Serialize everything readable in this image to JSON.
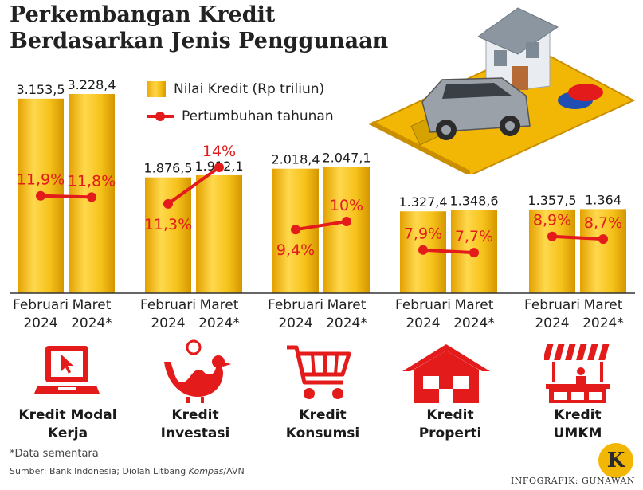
{
  "title": "Perkembangan Kredit Berdasarkan Jenis Penggunaan",
  "legend": {
    "bar_label": "Nilai Kredit (Rp triliun)",
    "line_label": "Pertumbuhan tahunan"
  },
  "colors": {
    "bar": "#f4b800",
    "line": "#e31b1b",
    "icon": "#e31b1b"
  },
  "chart_data": {
    "type": "bar",
    "categories": [
      "Kredit Modal Kerja",
      "Kredit Investasi",
      "Kredit Konsumsi",
      "Kredit Properti",
      "Kredit UMKM"
    ],
    "periods": [
      {
        "line1": "Februari",
        "line2": "2024"
      },
      {
        "line1": "Maret",
        "line2": "2024*"
      }
    ],
    "series": [
      {
        "name": "Nilai Kredit (Rp triliun)",
        "type": "bar",
        "values": [
          [
            3153.5,
            3228.4
          ],
          [
            1876.5,
            1912.1
          ],
          [
            2018.4,
            2047.1
          ],
          [
            1327.4,
            1348.6
          ],
          [
            1357.5,
            1364
          ]
        ],
        "labels": [
          [
            "3.153,5",
            "3.228,4"
          ],
          [
            "1.876,5",
            "1.912,1"
          ],
          [
            "2.018,4",
            "2.047,1"
          ],
          [
            "1.327,4",
            "1.348,6"
          ],
          [
            "1.357,5",
            "1.364"
          ]
        ]
      },
      {
        "name": "Pertumbuhan tahunan",
        "type": "line",
        "values": [
          [
            11.9,
            11.8
          ],
          [
            11.3,
            14.0
          ],
          [
            9.4,
            10.0
          ],
          [
            7.9,
            7.7
          ],
          [
            8.9,
            8.7
          ]
        ],
        "labels": [
          [
            "11,9%",
            "11,8%"
          ],
          [
            "11,3%",
            "14%"
          ],
          [
            "9,4%",
            "10%"
          ],
          [
            "7,9%",
            "7,7%"
          ],
          [
            "8,9%",
            "8,7%"
          ]
        ]
      }
    ],
    "legend_position": "top-right",
    "grid": false
  },
  "category_labels": [
    {
      "line1": "Kredit Modal",
      "line2": "Kerja",
      "icon": "laptop-icon"
    },
    {
      "line1": "Kredit",
      "line2": "Investasi",
      "icon": "rooster-icon"
    },
    {
      "line1": "Kredit",
      "line2": "Konsumsi",
      "icon": "shopping-cart-icon"
    },
    {
      "line1": "Kredit",
      "line2": "Properti",
      "icon": "house-icon"
    },
    {
      "line1": "Kredit",
      "line2": "UMKM",
      "icon": "market-stall-icon"
    }
  ],
  "note": "*Data sementara",
  "source": {
    "text": "Sumber: Bank Indonesia; Diolah Litbang ",
    "italic": "Kompas",
    "suffix": "/AVN"
  },
  "credit": "INFOGRAFIK: GUNAWAN",
  "logo_letter": "K"
}
